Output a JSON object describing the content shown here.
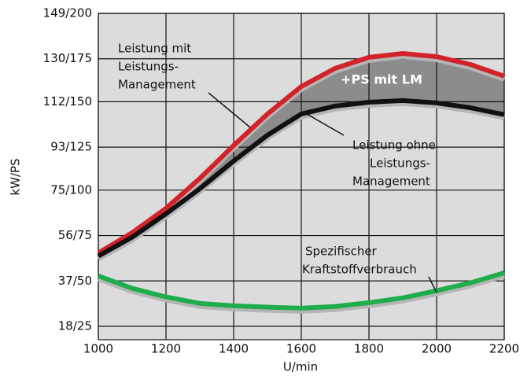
{
  "chart_data": {
    "type": "line",
    "x_label": "U/min",
    "y_label": "kW/PS",
    "x": [
      1000,
      1100,
      1200,
      1300,
      1400,
      1500,
      1600,
      1700,
      1800,
      1900,
      2000,
      2100,
      2200
    ],
    "xlim": [
      1000,
      2200
    ],
    "xticks": [
      1000,
      1200,
      1400,
      1600,
      1800,
      2000,
      2200
    ],
    "ylim": [
      12.4,
      149
    ],
    "yticks": [
      {
        "value": 18,
        "label": "18/25"
      },
      {
        "value": 37,
        "label": "37/50"
      },
      {
        "value": 56,
        "label": "56/75"
      },
      {
        "value": 75,
        "label": "75/100"
      },
      {
        "value": 93,
        "label": "93/125"
      },
      {
        "value": 112,
        "label": "112/150"
      },
      {
        "value": 130,
        "label": "130/175"
      },
      {
        "value": 149,
        "label": "149/200"
      }
    ],
    "grid": true,
    "series": [
      {
        "color": "#d2232a",
        "values": [
          48.7,
          57.2,
          67.4,
          79.9,
          93.7,
          106.9,
          118.4,
          126,
          130.6,
          132.2,
          130.9,
          127.6,
          122.7
        ]
      },
      {
        "color": "#111111",
        "values": [
          47.4,
          55.3,
          65.1,
          75.6,
          87.2,
          98,
          106.9,
          110.2,
          111.8,
          112.5,
          111.5,
          109.5,
          106.6
        ]
      },
      {
        "color": "#1fad4b",
        "values": [
          39.1,
          33.9,
          30.3,
          27.6,
          26.6,
          26,
          25.6,
          26.3,
          27.9,
          29.9,
          32.9,
          36.2,
          40.4
        ]
      }
    ],
    "annotations": {
      "with_lm": [
        "Leistung mit",
        "Leistungs-",
        "Management"
      ],
      "gain": "+PS mit LM",
      "without_lm": [
        "Leistung ohne",
        "Leistungs-",
        "Management"
      ],
      "consumption": [
        "Spezifischer",
        "Kraftstoffverbrauch"
      ]
    }
  }
}
